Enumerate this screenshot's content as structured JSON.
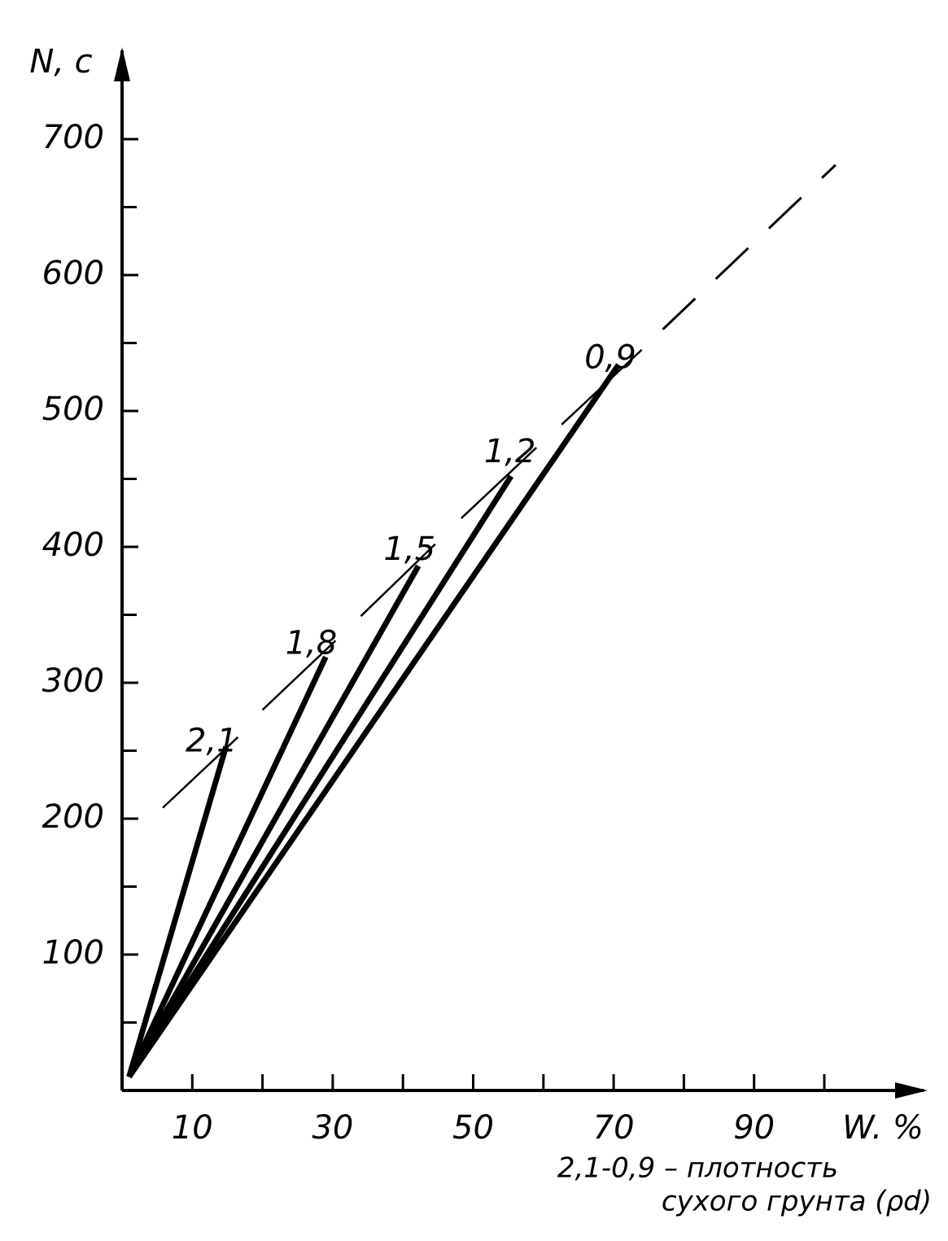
{
  "chart_data": {
    "type": "line",
    "y_label": "N, c",
    "x_label": "W. %",
    "note": [
      "2,1-0,9 – плотность",
      "сухого грунта (ρd)"
    ],
    "xlim": [
      0,
      115
    ],
    "ylim": [
      0,
      766
    ],
    "xticks": [
      10,
      30,
      50,
      70,
      90
    ],
    "xminor": [
      20,
      40,
      60,
      80,
      100
    ],
    "yticks": [
      100,
      200,
      300,
      400,
      500,
      600,
      700
    ],
    "yminor": [
      50,
      150,
      250,
      350,
      450,
      550,
      650
    ],
    "color": "#000000",
    "series": [
      {
        "name": "2,1",
        "x": [
          1,
          14.8
        ],
        "values": [
          10,
          253
        ],
        "tangent_x": [
          5.8,
          16.5
        ],
        "tangent_y": [
          208,
          260
        ]
      },
      {
        "name": "1,8",
        "x": [
          1,
          29
        ],
        "values": [
          10,
          319
        ],
        "tangent_x": [
          20,
          30.4
        ],
        "tangent_y": [
          280,
          331
        ]
      },
      {
        "name": "1,5",
        "x": [
          1,
          42.2
        ],
        "values": [
          10,
          386
        ],
        "tangent_x": [
          34,
          44.6
        ],
        "tangent_y": [
          349,
          402
        ]
      },
      {
        "name": "1,2",
        "x": [
          1,
          55.4
        ],
        "values": [
          10,
          452
        ],
        "tangent_x": [
          48.3,
          59
        ],
        "tangent_y": [
          421,
          473
        ]
      },
      {
        "name": "0,9",
        "x": [
          1,
          70.7
        ],
        "values": [
          10,
          534
        ],
        "tangent_x": [
          62.6,
          74
        ],
        "tangent_y": [
          490,
          545
        ]
      }
    ],
    "dashed": {
      "x": [
        77,
        101.6
      ],
      "values": [
        560,
        681
      ]
    }
  }
}
